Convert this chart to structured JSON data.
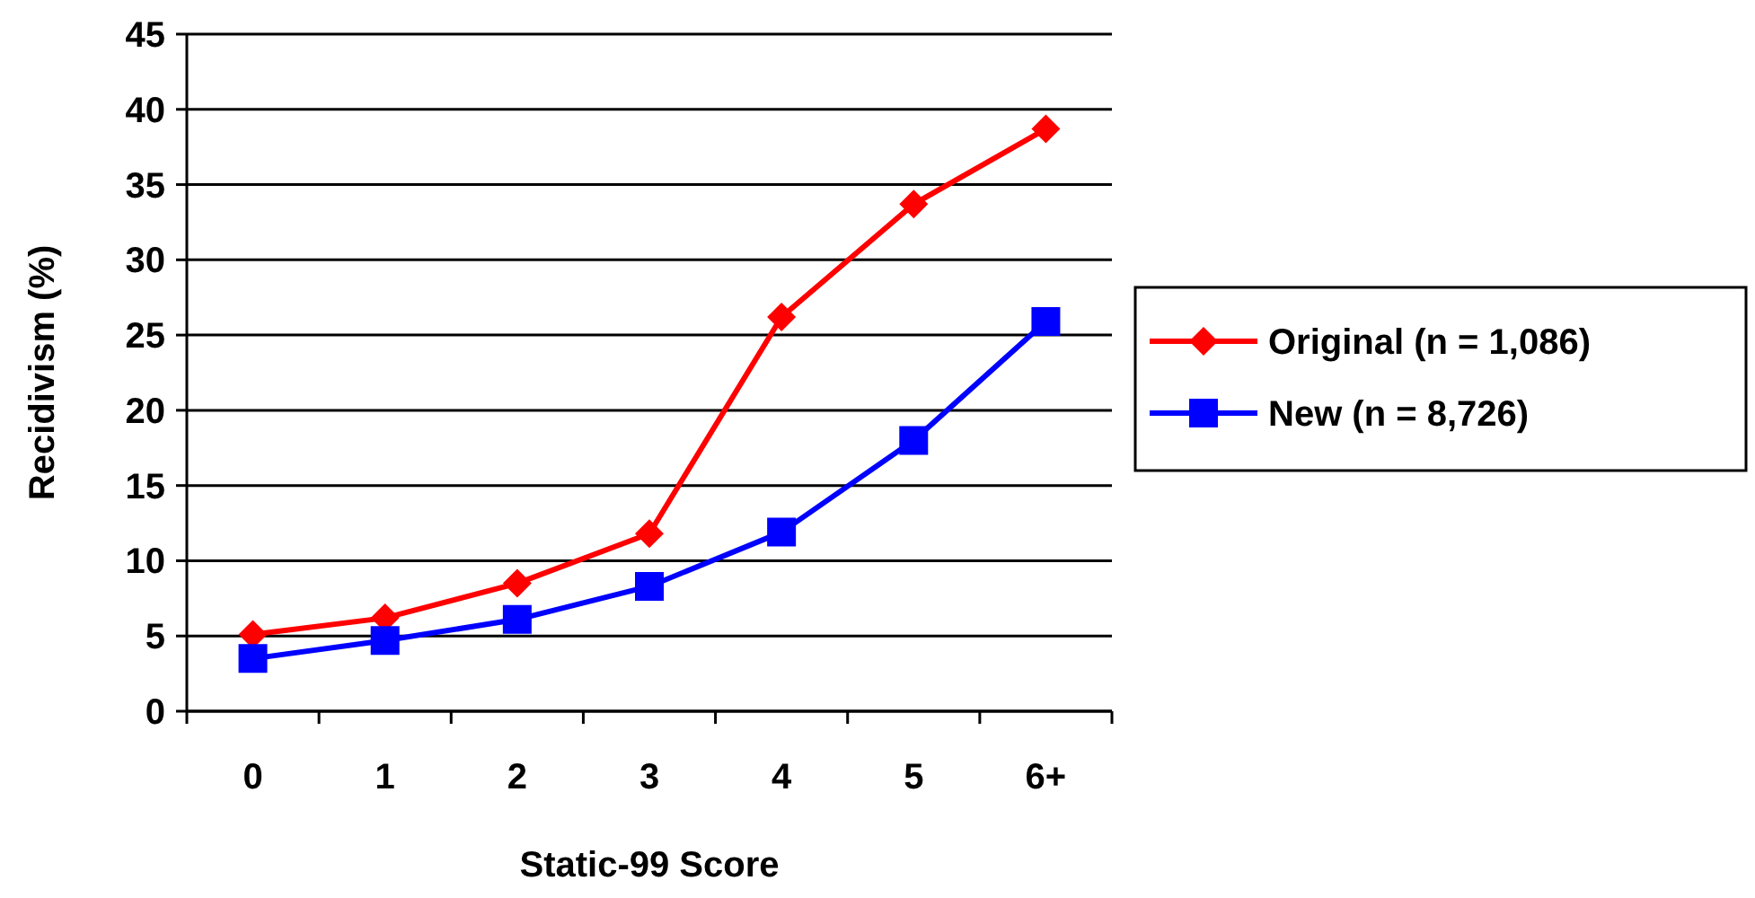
{
  "chart_data": {
    "type": "line",
    "xlabel": "Static-99 Score",
    "ylabel": "Recidivism (%)",
    "categories": [
      "0",
      "1",
      "2",
      "3",
      "4",
      "5",
      "6+"
    ],
    "ylim": [
      0,
      45
    ],
    "yticks": [
      0,
      5,
      10,
      15,
      20,
      25,
      30,
      35,
      40,
      45
    ],
    "grid": "y",
    "legend": "right",
    "series": [
      {
        "name": "Original (n = 1,086)",
        "color": "#ff0000",
        "marker": "diamond",
        "values": [
          5.1,
          6.2,
          8.5,
          11.8,
          26.2,
          33.7,
          38.7
        ]
      },
      {
        "name": "New (n = 8,726)",
        "color": "#0000ff",
        "marker": "square",
        "values": [
          3.5,
          4.7,
          6.1,
          8.3,
          11.9,
          18.0,
          25.9
        ]
      }
    ]
  }
}
